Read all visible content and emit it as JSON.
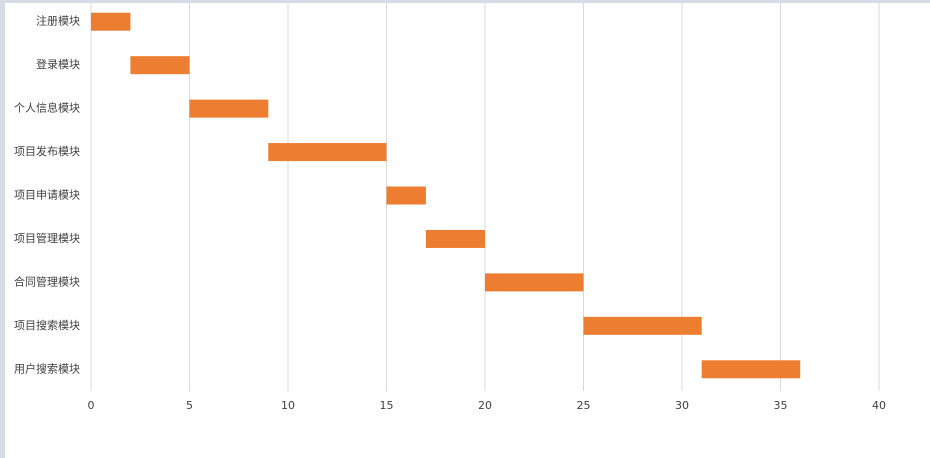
{
  "chart_data": {
    "type": "gantt",
    "categories": [
      "注册模块",
      "登录模块",
      "个人信息模块",
      "项目发布模块",
      "项目申请模块",
      "项目管理模块",
      "合同管理模块",
      "项目搜索模块",
      "用户搜索模块"
    ],
    "series": [
      {
        "color": "transparent",
        "values": [
          0,
          2,
          5,
          9,
          15,
          17,
          20,
          25,
          31
        ]
      },
      {
        "color": "#ed7d31",
        "values": [
          2,
          3,
          4,
          6,
          2,
          3,
          5,
          6,
          5
        ]
      }
    ],
    "xlim": [
      0,
      40
    ],
    "xticks": [
      0,
      5,
      10,
      15,
      20,
      25,
      30,
      35,
      40
    ],
    "grid": true
  }
}
